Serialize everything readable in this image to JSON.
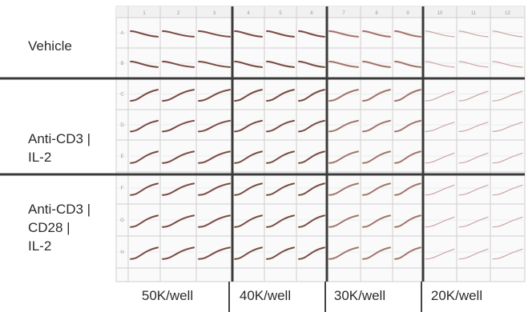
{
  "figure": {
    "row_groups": [
      {
        "label": "Vehicle",
        "wells": 2
      },
      {
        "label": "Anti-CD3 |\nIL-2",
        "wells": 3
      },
      {
        "label": "Anti-CD3 |\nCD28 |\nIL-2",
        "wells": 3
      }
    ],
    "col_groups": [
      {
        "label": "50K/well",
        "cols": 3
      },
      {
        "label": "40K/well",
        "cols": 3
      },
      {
        "label": "30K/well",
        "cols": 3
      },
      {
        "label": "20K/well",
        "cols": 3
      }
    ],
    "plate_header_numbers": [
      "1",
      "2",
      "3",
      "4",
      "5",
      "6",
      "7",
      "8",
      "9",
      "10",
      "11",
      "12"
    ],
    "plate_row_letters": [
      "A",
      "B",
      "C",
      "D",
      "E",
      "F",
      "G",
      "H"
    ],
    "colors": {
      "trace_dark": "#7a4a42",
      "trace_light": "#c9a8a2",
      "grid": "#cfcfcf",
      "separator": "#3a3a3a"
    }
  }
}
